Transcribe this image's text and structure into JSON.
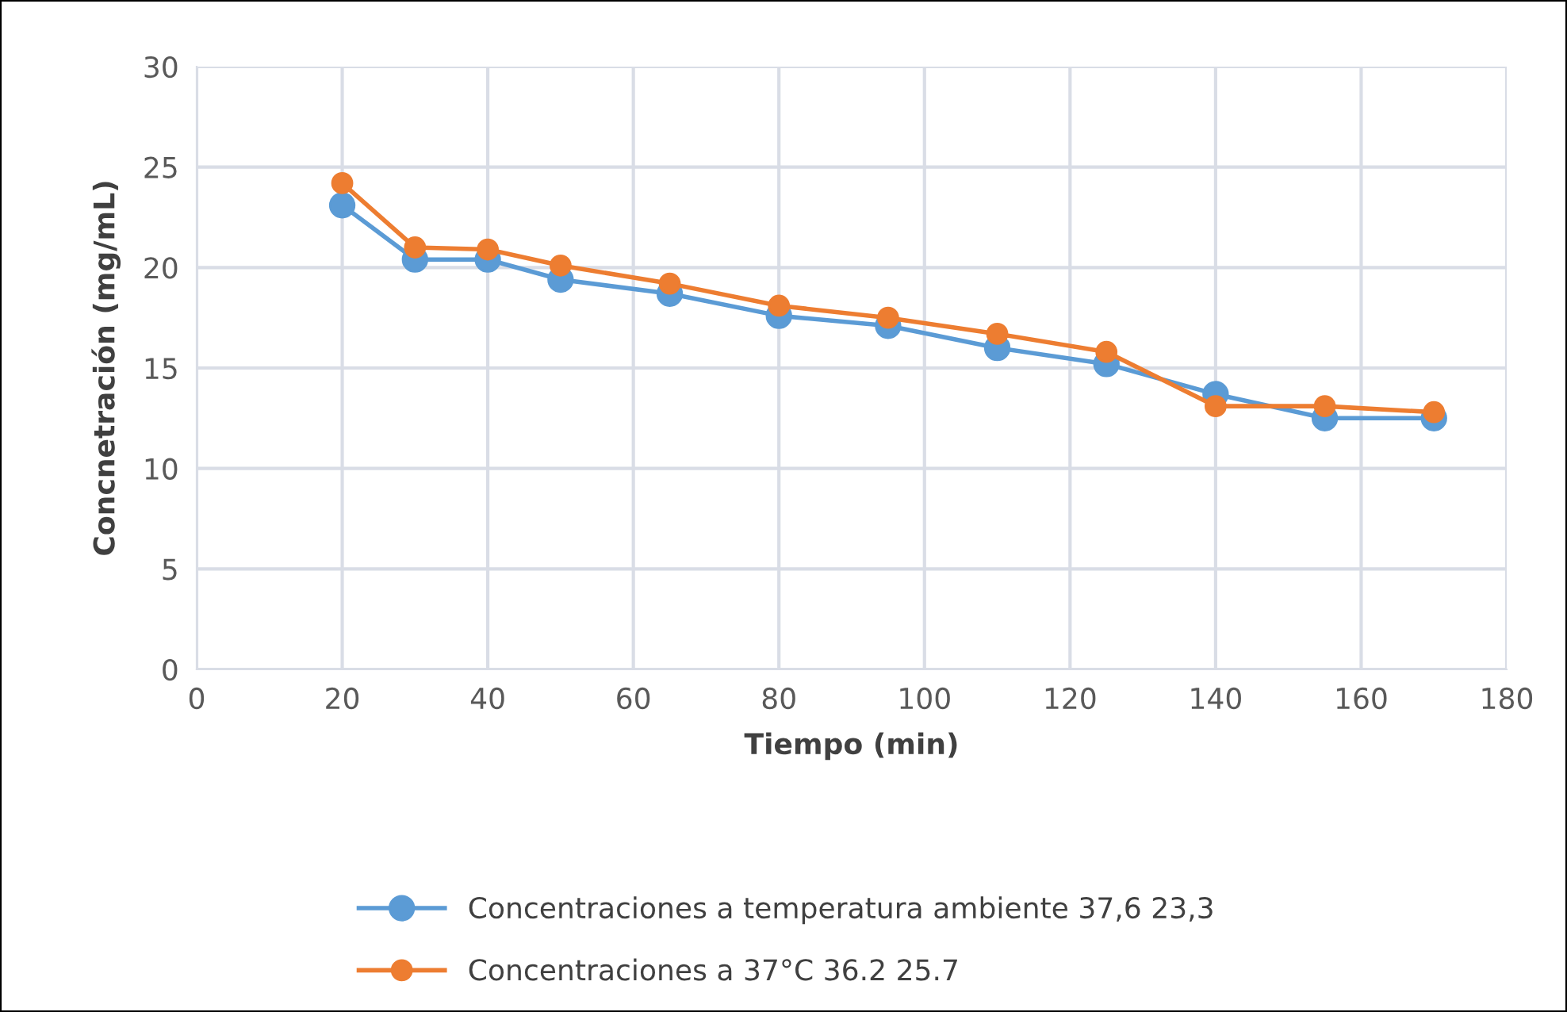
{
  "chart_data": {
    "type": "line",
    "xlabel": "Tiempo (min)",
    "ylabel": "Concnetración (mg/mL)",
    "x": [
      20,
      30,
      40,
      50,
      65,
      80,
      95,
      110,
      125,
      140,
      155,
      170
    ],
    "series": [
      {
        "name": "Concentraciones a temperatura ambiente 37,6 23,3",
        "color": "#5b9bd5",
        "values": [
          23.1,
          20.4,
          20.4,
          19.4,
          18.7,
          17.6,
          17.1,
          16.0,
          15.2,
          13.7,
          12.5,
          12.5
        ]
      },
      {
        "name": "Concentraciones a 37°C 36.2 25.7",
        "color": "#ed7d31",
        "values": [
          24.2,
          21.0,
          20.9,
          20.1,
          19.2,
          18.1,
          17.5,
          16.7,
          15.8,
          13.1,
          13.1,
          12.8
        ]
      }
    ],
    "xlim": [
      0,
      180
    ],
    "xticks": [
      0,
      20,
      40,
      60,
      80,
      100,
      120,
      140,
      160,
      180
    ],
    "ylim": [
      0,
      30
    ],
    "yticks": [
      0,
      5,
      10,
      15,
      20,
      25,
      30
    ],
    "grid": true,
    "legend": "bottom",
    "marker": "circle",
    "line_style": "solid"
  }
}
